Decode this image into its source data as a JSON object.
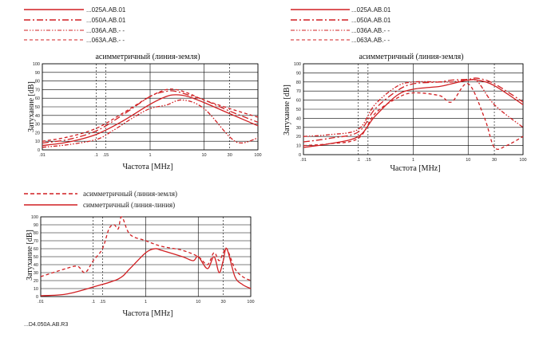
{
  "colors": {
    "curve": "#d11f22",
    "grid": "#000000",
    "bg": "#ffffff"
  },
  "chart_data": [
    {
      "type": "line",
      "title": "асимметричный (линия-земля)",
      "xlabel": "Частота [MHz]",
      "ylabel": "Затухание [dB]",
      "x_scale": "log",
      "xlim": [
        0.01,
        100
      ],
      "ylim": [
        0,
        100
      ],
      "x_ticks": [
        ".01",
        ".1",
        ".15",
        "1",
        "10",
        "30",
        "100"
      ],
      "y_ticks": [
        "0",
        "10",
        "20",
        "30",
        "40",
        "50",
        "60",
        "70",
        "80",
        "90",
        "100"
      ],
      "legend": [
        "...025A.AB.01",
        "...050A.AB.01",
        "...036A.AB.- -",
        "...063A.AB.- -"
      ],
      "series": [
        {
          "name": "...025A.AB.01",
          "style": "solid",
          "x": [
            0.01,
            0.03,
            0.1,
            0.3,
            1,
            2,
            3,
            5,
            10,
            30,
            100
          ],
          "y": [
            5,
            9,
            18,
            33,
            53,
            62,
            64,
            62,
            55,
            42,
            28
          ]
        },
        {
          "name": "...050A.AB.01",
          "style": "dashdot",
          "x": [
            0.01,
            0.03,
            0.1,
            0.3,
            1,
            2,
            3,
            5,
            10,
            30,
            100
          ],
          "y": [
            8,
            12,
            22,
            40,
            62,
            68,
            68,
            64,
            58,
            45,
            32
          ]
        },
        {
          "name": "...036A.AB.- -",
          "style": "dashdotdot",
          "x": [
            0.01,
            0.03,
            0.1,
            0.2,
            0.5,
            1,
            2,
            4,
            10,
            30,
            50,
            100
          ],
          "y": [
            3,
            6,
            12,
            22,
            38,
            48,
            52,
            58,
            48,
            15,
            8,
            14
          ]
        },
        {
          "name": "...063A.AB.- -",
          "style": "dashed",
          "x": [
            0.01,
            0.03,
            0.1,
            0.3,
            1,
            2,
            3,
            5,
            10,
            30,
            100
          ],
          "y": [
            10,
            15,
            25,
            42,
            62,
            70,
            70,
            66,
            58,
            48,
            38
          ]
        }
      ]
    },
    {
      "type": "line",
      "title": "асимметричный (линия-земля)",
      "xlabel": "Частота [MHz]",
      "ylabel": "Затухание [dB]",
      "x_scale": "log",
      "xlim": [
        0.01,
        100
      ],
      "ylim": [
        0,
        100
      ],
      "x_ticks": [
        ".01",
        ".1",
        ".15",
        "1",
        "10",
        "30",
        "100"
      ],
      "y_ticks": [
        "0",
        "10",
        "20",
        "30",
        "40",
        "50",
        "60",
        "70",
        "80",
        "90",
        "100"
      ],
      "legend": [
        "...025A.AB.01",
        "...050A.AB.01",
        "...036A.AB.- -",
        "...063A.AB.- -"
      ],
      "series": [
        {
          "name": "...025A.AB.01",
          "style": "solid",
          "x": [
            0.01,
            0.03,
            0.1,
            0.2,
            0.5,
            1,
            3,
            5,
            10,
            15,
            30,
            100
          ],
          "y": [
            8,
            12,
            20,
            42,
            65,
            72,
            75,
            78,
            82,
            82,
            76,
            55
          ]
        },
        {
          "name": "...050A.AB.01",
          "style": "dashdot",
          "x": [
            0.01,
            0.03,
            0.1,
            0.2,
            0.5,
            1,
            3,
            5,
            10,
            15,
            30,
            100
          ],
          "y": [
            14,
            18,
            25,
            50,
            70,
            78,
            80,
            82,
            83,
            84,
            78,
            58
          ]
        },
        {
          "name": "...036A.AB.- -",
          "style": "dashdotdot",
          "x": [
            0.01,
            0.03,
            0.1,
            0.2,
            0.5,
            1,
            3,
            5,
            10,
            15,
            30,
            100
          ],
          "y": [
            20,
            22,
            28,
            55,
            75,
            80,
            80,
            80,
            82,
            80,
            55,
            30
          ]
        },
        {
          "name": "...063A.AB.- -",
          "style": "dashed",
          "x": [
            0.01,
            0.03,
            0.1,
            0.2,
            0.5,
            1,
            3,
            5,
            10,
            20,
            30,
            50,
            100
          ],
          "y": [
            10,
            12,
            18,
            45,
            62,
            68,
            65,
            58,
            78,
            40,
            8,
            10,
            20
          ]
        }
      ]
    },
    {
      "type": "line",
      "xlabel": "Частота [MHz]",
      "ylabel": "Затухание [dB]",
      "x_scale": "log",
      "xlim": [
        0.01,
        100
      ],
      "ylim": [
        0,
        100
      ],
      "x_ticks": [
        ".01",
        ".1",
        ".15",
        "1",
        "10",
        "30",
        "100"
      ],
      "y_ticks": [
        "0",
        "10",
        "20",
        "30",
        "40",
        "50",
        "60",
        "70",
        "80",
        "90",
        "100"
      ],
      "legend": [
        "асимметричный (линия-земля)",
        "симметричный (линия-линия)"
      ],
      "series": [
        {
          "name": "асимметричный (линия-земля)",
          "style": "dashed",
          "x": [
            0.01,
            0.03,
            0.05,
            0.07,
            0.1,
            0.15,
            0.2,
            0.25,
            0.3,
            0.35,
            0.5,
            1,
            2,
            5,
            10,
            15,
            20,
            25,
            30,
            35,
            50,
            70,
            100
          ],
          "y": [
            25,
            35,
            38,
            30,
            45,
            60,
            85,
            90,
            85,
            100,
            78,
            70,
            63,
            58,
            50,
            40,
            55,
            45,
            55,
            60,
            35,
            25,
            20
          ]
        },
        {
          "name": "симметричный (линия-линия)",
          "style": "solid",
          "x": [
            0.01,
            0.03,
            0.1,
            0.3,
            0.5,
            1,
            1.5,
            2,
            5,
            8,
            10,
            15,
            20,
            25,
            30,
            35,
            50,
            70,
            100
          ],
          "y": [
            1,
            3,
            12,
            22,
            35,
            55,
            60,
            58,
            50,
            45,
            50,
            35,
            50,
            30,
            45,
            60,
            25,
            15,
            10
          ]
        }
      ]
    }
  ],
  "footer": {
    "code": "...D4.050A.AB.R3"
  }
}
